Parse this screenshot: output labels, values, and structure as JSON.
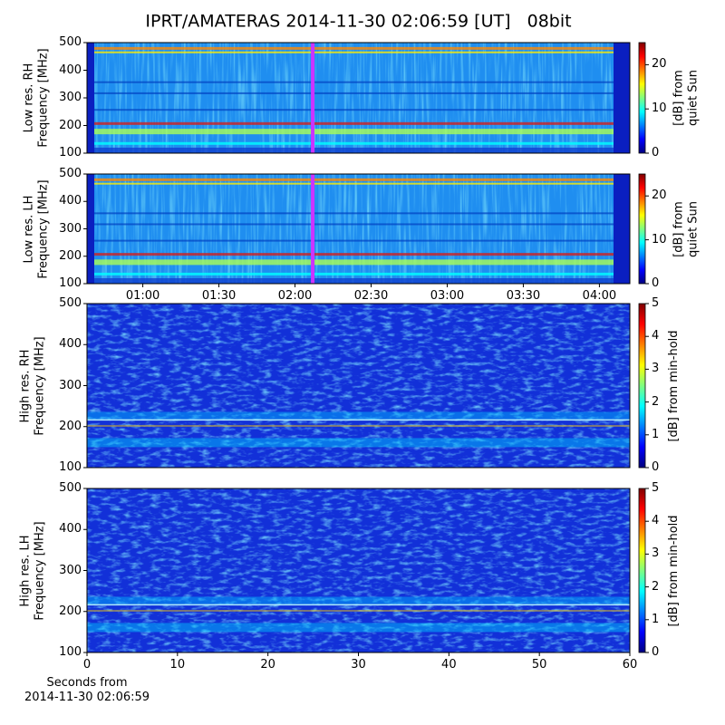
{
  "chart_data": [
    {
      "type": "heatmap",
      "title": "IPRT/AMATERAS 2014-11-30 02:06:59 [UT]   08bit",
      "ylabel": "Low res. RH\nFrequency [MHz]",
      "ylim": [
        100,
        500
      ],
      "yticks": [
        100,
        200,
        300,
        400,
        500
      ],
      "xlim": [
        38,
        252
      ],
      "marker_x": 126.98,
      "marker_color": "#cc33ff",
      "clim": [
        0,
        25
      ],
      "cticks": [
        0,
        10,
        20
      ],
      "clabel": "[dB] from\nquiet Sun",
      "colormap": "jet"
    },
    {
      "type": "heatmap",
      "ylabel": "Low res. LH\nFrequency [MHz]",
      "ylim": [
        100,
        500
      ],
      "yticks": [
        100,
        200,
        300,
        400,
        500
      ],
      "xlim": [
        38,
        252
      ],
      "xticks": [
        {
          "value": 60,
          "label": "01:00"
        },
        {
          "value": 90,
          "label": "01:30"
        },
        {
          "value": 120,
          "label": "02:00"
        },
        {
          "value": 150,
          "label": "02:30"
        },
        {
          "value": 180,
          "label": "03:00"
        },
        {
          "value": 210,
          "label": "03:30"
        },
        {
          "value": 240,
          "label": "04:00"
        }
      ],
      "marker_x": 126.98,
      "marker_color": "#cc33ff",
      "clim": [
        0,
        25
      ],
      "cticks": [
        0,
        10,
        20
      ],
      "clabel": "[dB] from\nquiet Sun",
      "colormap": "jet"
    },
    {
      "type": "heatmap",
      "ylabel": "High res. RH\nFrequency [MHz]",
      "ylim": [
        100,
        500
      ],
      "yticks": [
        100,
        200,
        300,
        400,
        500
      ],
      "xlim": [
        0,
        60
      ],
      "clim": [
        0,
        5
      ],
      "cticks": [
        0,
        1,
        2,
        3,
        4,
        5
      ],
      "clabel": "[dB] from min-hold",
      "colormap": "jet"
    },
    {
      "type": "heatmap",
      "ylabel": "High res. LH\nFrequency [MHz]",
      "ylim": [
        100,
        500
      ],
      "yticks": [
        100,
        200,
        300,
        400,
        500
      ],
      "xlim": [
        0,
        60
      ],
      "xticks": [
        0,
        10,
        20,
        30,
        40,
        50,
        60
      ],
      "xlabel": "Seconds from\n2014-11-30 02:06:59",
      "clim": [
        0,
        5
      ],
      "cticks": [
        0,
        1,
        2,
        3,
        4,
        5
      ],
      "clabel": "[dB] from min-hold",
      "colormap": "jet"
    }
  ]
}
